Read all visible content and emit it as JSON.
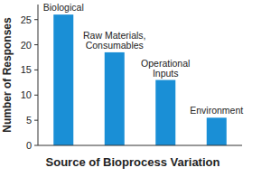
{
  "chart_data": {
    "type": "bar",
    "x_label": "Source of Bioprocess Variation",
    "y_label": "Number of Responses",
    "categories": [
      "Biological",
      "Raw Materials, Consumables",
      "Operational Inputs",
      "Environment"
    ],
    "values": [
      26,
      18.5,
      13,
      5.5
    ],
    "color": "#1a8fd6",
    "ylim": [
      0,
      28
    ],
    "yticks": [
      0,
      5,
      10,
      15,
      20,
      25
    ],
    "grid": false
  }
}
